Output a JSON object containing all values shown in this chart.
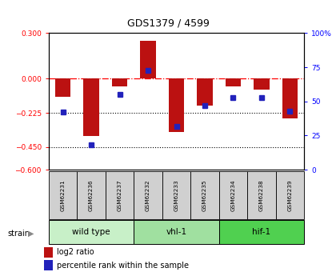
{
  "title": "GDS1379 / 4599",
  "samples": [
    "GSM62231",
    "GSM62236",
    "GSM62237",
    "GSM62232",
    "GSM62233",
    "GSM62235",
    "GSM62234",
    "GSM62238",
    "GSM62239"
  ],
  "log2_ratio": [
    -0.12,
    -0.38,
    -0.05,
    0.25,
    -0.35,
    -0.18,
    -0.05,
    -0.07,
    -0.26
  ],
  "pct_rank": [
    42,
    18,
    55,
    73,
    32,
    47,
    53,
    53,
    43
  ],
  "groups": [
    {
      "label": "wild type",
      "start": 0,
      "end": 3,
      "color": "#c8f0c8"
    },
    {
      "label": "vhl-1",
      "start": 3,
      "end": 6,
      "color": "#a0e0a0"
    },
    {
      "label": "hif-1",
      "start": 6,
      "end": 9,
      "color": "#50d050"
    }
  ],
  "ylim_left": [
    -0.6,
    0.3
  ],
  "ylim_right": [
    0,
    100
  ],
  "yticks_left": [
    0.3,
    0,
    -0.225,
    -0.45,
    -0.6
  ],
  "yticks_right": [
    100,
    75,
    50,
    25,
    0
  ],
  "bar_color": "#bb1111",
  "dot_color": "#2222bb",
  "bar_width": 0.55,
  "sample_box_color": "#d0d0d0",
  "group_box_border": "#000000"
}
